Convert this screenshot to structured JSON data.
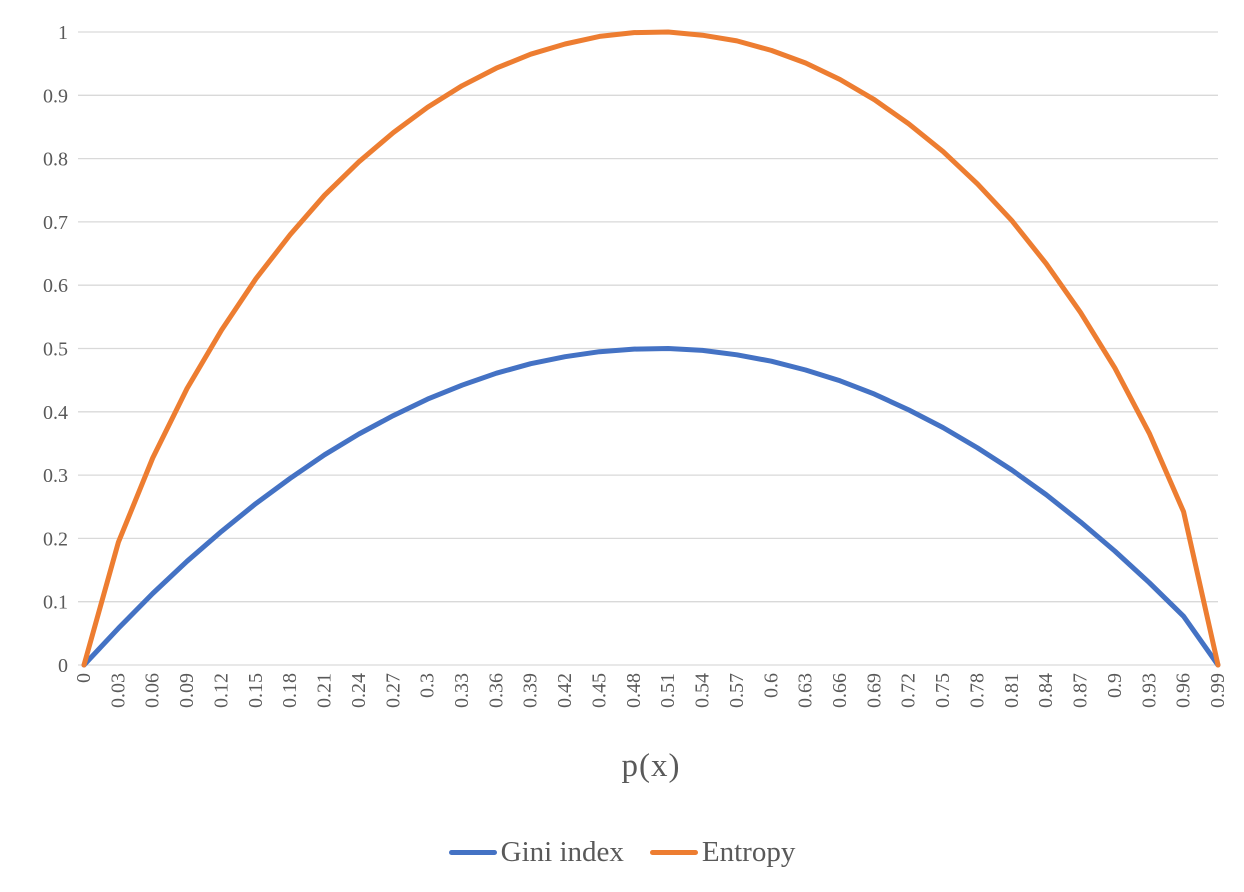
{
  "chart_data": {
    "type": "line",
    "title": "",
    "xlabel": "p(x)",
    "ylabel": "",
    "ylim": [
      0,
      1
    ],
    "grid": "horizontal",
    "gridline_color": "#D9D9D9",
    "axis_text_color": "#595959",
    "legend_position": "bottom",
    "y_ticks": [
      "0",
      "0.1",
      "0.2",
      "0.3",
      "0.4",
      "0.5",
      "0.6",
      "0.7",
      "0.8",
      "0.9",
      "1"
    ],
    "x_categories": [
      "0",
      "0.03",
      "0.06",
      "0.09",
      "0.12",
      "0.15",
      "0.18",
      "0.21",
      "0.24",
      "0.27",
      "0.3",
      "0.33",
      "0.36",
      "0.39",
      "0.42",
      "0.45",
      "0.48",
      "0.51",
      "0.54",
      "0.57",
      "0.6",
      "0.63",
      "0.66",
      "0.69",
      "0.72",
      "0.75",
      "0.78",
      "0.81",
      "0.84",
      "0.87",
      "0.9",
      "0.93",
      "0.96",
      "0.99"
    ],
    "series": [
      {
        "name": "Gini index",
        "color": "#4472C4",
        "values": [
          0,
          0.058,
          0.113,
          0.164,
          0.211,
          0.255,
          0.295,
          0.332,
          0.365,
          0.394,
          0.42,
          0.442,
          0.461,
          0.476,
          0.487,
          0.495,
          0.499,
          0.5,
          0.497,
          0.49,
          0.48,
          0.466,
          0.449,
          0.428,
          0.403,
          0.375,
          0.343,
          0.308,
          0.269,
          0.226,
          0.18,
          0.13,
          0.077,
          0
        ]
      },
      {
        "name": "Entropy",
        "color": "#ED7D31",
        "values": [
          0,
          0.194,
          0.327,
          0.437,
          0.529,
          0.61,
          0.68,
          0.742,
          0.795,
          0.841,
          0.881,
          0.915,
          0.943,
          0.965,
          0.981,
          0.993,
          0.999,
          1,
          0.995,
          0.986,
          0.971,
          0.951,
          0.925,
          0.893,
          0.855,
          0.811,
          0.76,
          0.702,
          0.634,
          0.557,
          0.469,
          0.366,
          0.242,
          0
        ]
      }
    ]
  }
}
